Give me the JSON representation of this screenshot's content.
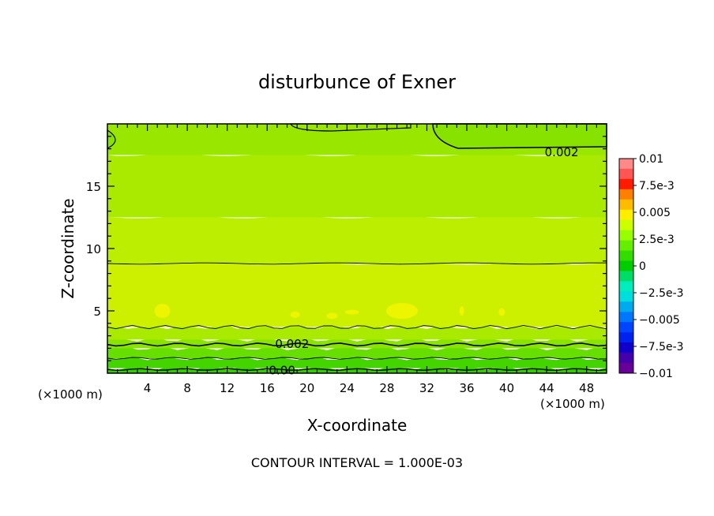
{
  "chart_data": {
    "type": "heatmap",
    "title": "disturbunce of Exner",
    "xlabel": "X-coordinate",
    "ylabel": "Z-coordinate",
    "xunit_left": "(×1000 m)",
    "xunit_right": "(×1000 m)",
    "footer": "CONTOUR INTERVAL = 1.000E-03",
    "xlim": [
      0,
      50
    ],
    "ylim": [
      0,
      20
    ],
    "xticks": [
      4,
      8,
      12,
      16,
      20,
      24,
      28,
      32,
      36,
      40,
      44,
      48
    ],
    "yticks": [
      5,
      10,
      15
    ],
    "contour_labels": [
      {
        "text": "0.002",
        "x": 45.5,
        "y": 17.8
      },
      {
        "text": "0.002",
        "x": 18.5,
        "y": 2.4
      },
      {
        "text": "0.00",
        "x": 17.5,
        "y": 0.3
      }
    ],
    "bands": [
      {
        "zlo": 0.0,
        "zhi": 0.4,
        "color": "#33cc00"
      },
      {
        "zlo": 0.4,
        "zhi": 1.2,
        "color": "#44d400"
      },
      {
        "zlo": 1.2,
        "zhi": 2.0,
        "color": "#66de00"
      },
      {
        "zlo": 2.0,
        "zhi": 2.7,
        "color": "#88e400"
      },
      {
        "zlo": 2.7,
        "zhi": 3.7,
        "color": "#aaea00"
      },
      {
        "zlo": 3.7,
        "zhi": 8.8,
        "color": "#ccf000"
      },
      {
        "zlo": 8.8,
        "zhi": 12.5,
        "color": "#bbee00"
      },
      {
        "zlo": 12.5,
        "zhi": 17.5,
        "color": "#aaea00"
      },
      {
        "zlo": 17.5,
        "zhi": 20.0,
        "color": "#99e600"
      }
    ],
    "colorbar": {
      "labels": [
        "0.01",
        "7.5e-3",
        "0.005",
        "2.5e-3",
        "0",
        "−2.5e-3",
        "−0.005",
        "−7.5e-3",
        "−0.01"
      ],
      "colors": [
        "#ff8888",
        "#ff5555",
        "#ff1a00",
        "#ff8000",
        "#ffbb00",
        "#ffee00",
        "#ccff00",
        "#99ff00",
        "#66ee00",
        "#33dd00",
        "#00cc00",
        "#00dd66",
        "#00eebb",
        "#00dddd",
        "#00aaee",
        "#0077ff",
        "#0044ff",
        "#0022ee",
        "#1100cc",
        "#4400aa",
        "#660099"
      ]
    }
  }
}
